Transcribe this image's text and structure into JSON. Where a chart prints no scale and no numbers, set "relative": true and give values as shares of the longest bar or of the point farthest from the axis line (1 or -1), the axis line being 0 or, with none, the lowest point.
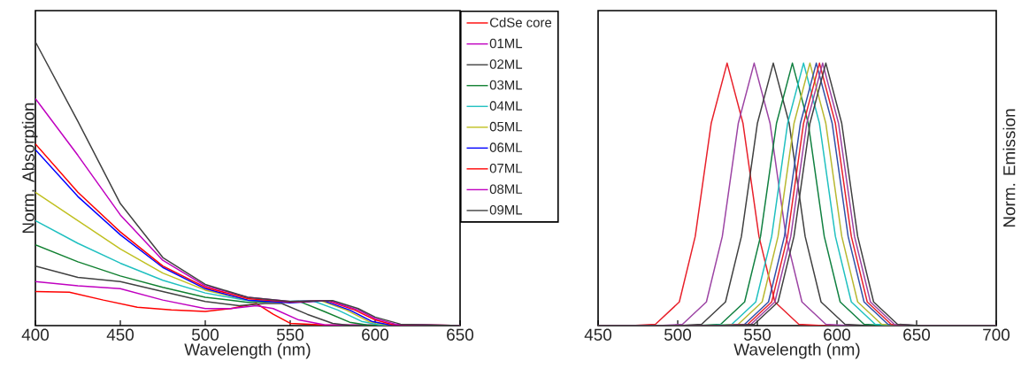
{
  "chart_data": [
    {
      "type": "line",
      "relative": true,
      "xlabel": "Wavelength (nm)",
      "ylabel": "Norm. Absorption",
      "xlim": [
        400,
        650
      ],
      "xticks": [
        400,
        450,
        500,
        550,
        600,
        650
      ],
      "legend": "right",
      "series": [
        {
          "name": "CdSe core",
          "color": "#ff0000",
          "x": [
            400,
            420,
            440,
            460,
            480,
            500,
            515,
            530,
            540,
            550,
            570,
            650
          ],
          "values": [
            0.12,
            0.118,
            0.09,
            0.065,
            0.055,
            0.05,
            0.06,
            0.078,
            0.04,
            0.008,
            0.002,
            0
          ]
        },
        {
          "name": "01ML",
          "color": "#c000c0",
          "x": [
            400,
            425,
            450,
            475,
            500,
            515,
            530,
            540,
            555,
            570,
            650
          ],
          "values": [
            0.155,
            0.14,
            0.13,
            0.09,
            0.06,
            0.06,
            0.07,
            0.06,
            0.02,
            0.003,
            0
          ]
        },
        {
          "name": "02ML",
          "color": "#404040",
          "x": [
            400,
            425,
            450,
            475,
            500,
            520,
            535,
            545,
            560,
            575,
            585,
            650
          ],
          "values": [
            0.21,
            0.17,
            0.155,
            0.12,
            0.085,
            0.07,
            0.078,
            0.078,
            0.04,
            0.008,
            0.001,
            0
          ]
        },
        {
          "name": "03ML",
          "color": "#108030",
          "x": [
            400,
            425,
            450,
            475,
            500,
            525,
            545,
            555,
            570,
            585,
            595,
            650
          ],
          "values": [
            0.285,
            0.225,
            0.175,
            0.135,
            0.1,
            0.082,
            0.085,
            0.086,
            0.05,
            0.012,
            0.002,
            0
          ]
        },
        {
          "name": "04ML",
          "color": "#20c0c0",
          "x": [
            400,
            425,
            450,
            475,
            500,
            525,
            548,
            563,
            578,
            592,
            602,
            650
          ],
          "values": [
            0.37,
            0.29,
            0.22,
            0.16,
            0.115,
            0.088,
            0.085,
            0.088,
            0.055,
            0.015,
            0.003,
            0
          ]
        },
        {
          "name": "05ML",
          "color": "#c0c020",
          "x": [
            400,
            425,
            450,
            475,
            500,
            525,
            550,
            568,
            583,
            596,
            606,
            650
          ],
          "values": [
            0.47,
            0.37,
            0.27,
            0.185,
            0.125,
            0.09,
            0.082,
            0.088,
            0.055,
            0.015,
            0.003,
            0
          ]
        },
        {
          "name": "06ML",
          "color": "#0000ff",
          "x": [
            400,
            425,
            450,
            475,
            500,
            525,
            550,
            570,
            585,
            598,
            608,
            650
          ],
          "values": [
            0.62,
            0.455,
            0.32,
            0.205,
            0.13,
            0.09,
            0.08,
            0.087,
            0.055,
            0.015,
            0.003,
            0
          ]
        },
        {
          "name": "07ML",
          "color": "#ff0000",
          "x": [
            400,
            425,
            450,
            475,
            500,
            525,
            550,
            572,
            588,
            600,
            610,
            650
          ],
          "values": [
            0.64,
            0.47,
            0.33,
            0.21,
            0.135,
            0.095,
            0.083,
            0.088,
            0.055,
            0.02,
            0.004,
            0
          ]
        },
        {
          "name": "08ML",
          "color": "#c000c0",
          "x": [
            400,
            425,
            450,
            475,
            500,
            525,
            550,
            573,
            590,
            600,
            612,
            650
          ],
          "values": [
            0.8,
            0.6,
            0.39,
            0.23,
            0.14,
            0.1,
            0.085,
            0.088,
            0.055,
            0.025,
            0.005,
            0
          ]
        },
        {
          "name": "09ML",
          "color": "#404040",
          "x": [
            400,
            425,
            450,
            475,
            500,
            525,
            550,
            575,
            590,
            600,
            615,
            650
          ],
          "values": [
            1.0,
            0.72,
            0.43,
            0.24,
            0.145,
            0.1,
            0.085,
            0.088,
            0.06,
            0.03,
            0.005,
            0
          ]
        }
      ]
    },
    {
      "type": "line",
      "relative": true,
      "xlabel": "Wavelength (nm)",
      "ylabel": "Norm. Emission",
      "xlim": [
        450,
        700
      ],
      "xticks": [
        450,
        500,
        550,
        600,
        650,
        700
      ],
      "series": [
        {
          "color": "#e8202a",
          "x": [
            450,
            471,
            486,
            501,
            511,
            521,
            531,
            541,
            551,
            561,
            576,
            591,
            700
          ],
          "values": [
            0,
            0,
            0.005,
            0.09,
            0.34,
            0.77,
            1,
            0.77,
            0.34,
            0.09,
            0.005,
            0,
            0
          ]
        },
        {
          "color": "#9c44a4",
          "x": [
            450,
            488,
            503,
            518,
            528,
            538,
            548,
            558,
            568,
            578,
            593,
            608,
            700
          ],
          "values": [
            0,
            0,
            0.005,
            0.09,
            0.34,
            0.77,
            1,
            0.77,
            0.34,
            0.09,
            0.005,
            0,
            0
          ]
        },
        {
          "color": "#404040",
          "x": [
            450,
            500,
            515,
            530,
            540,
            550,
            560,
            570,
            580,
            590,
            605,
            620,
            700
          ],
          "values": [
            0,
            0,
            0.005,
            0.09,
            0.34,
            0.77,
            1,
            0.77,
            0.34,
            0.09,
            0.005,
            0,
            0
          ]
        },
        {
          "color": "#108040",
          "x": [
            450,
            512,
            527,
            542,
            552,
            562,
            572,
            582,
            592,
            602,
            617,
            632,
            700
          ],
          "values": [
            0,
            0,
            0.005,
            0.09,
            0.34,
            0.77,
            1,
            0.77,
            0.34,
            0.09,
            0.005,
            0,
            0
          ]
        },
        {
          "color": "#20c0c0",
          "x": [
            450,
            519,
            534,
            549,
            559,
            569,
            579,
            589,
            599,
            609,
            624,
            639,
            700
          ],
          "values": [
            0,
            0,
            0.005,
            0.09,
            0.34,
            0.77,
            1,
            0.77,
            0.34,
            0.09,
            0.005,
            0,
            0
          ]
        },
        {
          "color": "#b8b830",
          "x": [
            450,
            523,
            538,
            553,
            563,
            573,
            583,
            593,
            603,
            613,
            628,
            643,
            700
          ],
          "values": [
            0,
            0,
            0.005,
            0.09,
            0.34,
            0.77,
            1,
            0.77,
            0.34,
            0.09,
            0.005,
            0,
            0
          ]
        },
        {
          "color": "#3050a8",
          "x": [
            450,
            527,
            542,
            557,
            567,
            577,
            587,
            597,
            607,
            617,
            632,
            647,
            700
          ],
          "values": [
            0,
            0,
            0.005,
            0.09,
            0.34,
            0.77,
            1,
            0.77,
            0.34,
            0.09,
            0.005,
            0,
            0
          ]
        },
        {
          "color": "#e8202a",
          "x": [
            450,
            529,
            544,
            559,
            569,
            579,
            589,
            599,
            609,
            619,
            634,
            649,
            700
          ],
          "values": [
            0,
            0,
            0.005,
            0.09,
            0.34,
            0.77,
            1,
            0.77,
            0.34,
            0.09,
            0.005,
            0,
            0
          ]
        },
        {
          "color": "#9c44a4",
          "x": [
            450,
            531,
            546,
            561,
            571,
            581,
            591,
            601,
            611,
            621,
            636,
            651,
            700
          ],
          "values": [
            0,
            0,
            0.005,
            0.09,
            0.34,
            0.77,
            1,
            0.77,
            0.34,
            0.09,
            0.005,
            0,
            0
          ]
        },
        {
          "color": "#404040",
          "x": [
            450,
            533,
            548,
            563,
            573,
            583,
            593,
            603,
            613,
            623,
            638,
            653,
            700
          ],
          "values": [
            0,
            0,
            0.005,
            0.09,
            0.34,
            0.77,
            1,
            0.77,
            0.34,
            0.09,
            0.005,
            0,
            0
          ]
        }
      ]
    }
  ]
}
